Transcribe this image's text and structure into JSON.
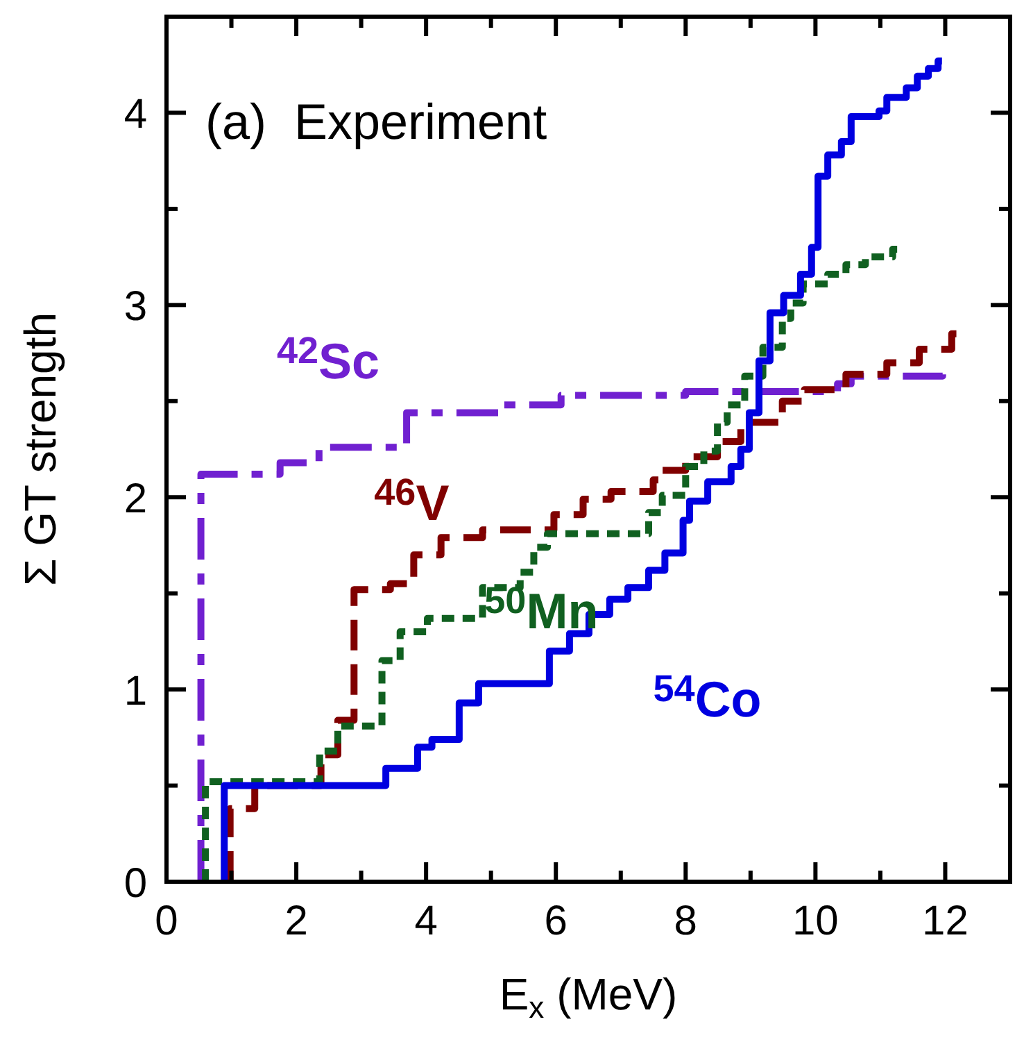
{
  "chart_data": {
    "type": "step",
    "title": "(a)  Experiment",
    "xlabel": "E$_{x}$ (MeV)",
    "ylabel": "Σ GT strength",
    "xlim": [
      0,
      13
    ],
    "ylim": [
      0,
      4.5
    ],
    "xticks": [
      0,
      {
        "value": 1,
        "label": null
      },
      2,
      {
        "value": 3,
        "label": null
      },
      4,
      {
        "value": 5,
        "label": null
      },
      6,
      {
        "value": 7,
        "label": null
      },
      8,
      {
        "value": 9,
        "label": null
      },
      10,
      {
        "value": 11,
        "label": null
      },
      12,
      {
        "value": 13,
        "label": null
      }
    ],
    "yticks": [
      0,
      {
        "value": 0.5,
        "label": null
      },
      1,
      {
        "value": 1.5,
        "label": null
      },
      2,
      {
        "value": 2.5,
        "label": null
      },
      3,
      {
        "value": 3.5,
        "label": null
      },
      4
    ],
    "grid": false,
    "marker": "none",
    "series": [
      {
        "name": "$^{42}$Sc",
        "color": "#7020d0",
        "line_style": "dashdot",
        "x": [
          0.53,
          0.53,
          1.75,
          2.35,
          3.7,
          5.2,
          6.08,
          8.0,
          10.34,
          10.55,
          11.96
        ],
        "values": [
          0,
          2.12,
          2.18,
          2.26,
          2.44,
          2.48,
          2.53,
          2.55,
          2.59,
          2.63,
          2.66
        ]
      },
      {
        "name": "$^{46}$V",
        "color": "#800000",
        "line_style": "dashed",
        "x": [
          0.98,
          0.98,
          1.36,
          2.38,
          2.64,
          2.89,
          3.45,
          3.81,
          4.23,
          4.87,
          5.97,
          6.42,
          6.85,
          7.5,
          7.64,
          8.0,
          8.49,
          8.85,
          9.49,
          9.83,
          10.47,
          11.1,
          11.6,
          12.1,
          12.2
        ],
        "values": [
          0,
          0.38,
          0.5,
          0.66,
          0.84,
          1.52,
          1.55,
          1.7,
          1.79,
          1.83,
          1.91,
          1.99,
          2.03,
          2.09,
          2.14,
          2.21,
          2.29,
          2.39,
          2.5,
          2.56,
          2.64,
          2.7,
          2.77,
          2.85,
          2.87
        ]
      },
      {
        "name": "$^{50}$Mn",
        "color": "#106020",
        "line_style": "dotted",
        "x": [
          0.6,
          0.6,
          2.36,
          2.64,
          3.32,
          3.6,
          4.02,
          4.87,
          5.45,
          5.66,
          5.87,
          7.43,
          7.64,
          8.0,
          8.28,
          8.49,
          8.64,
          8.91,
          9.19,
          9.49,
          9.62,
          9.81,
          10.19,
          10.47,
          10.77,
          11.19,
          11.32
        ],
        "values": [
          0,
          0.52,
          0.68,
          0.81,
          1.15,
          1.3,
          1.37,
          1.53,
          1.61,
          1.74,
          1.81,
          1.92,
          2.01,
          2.16,
          2.24,
          2.39,
          2.48,
          2.63,
          2.78,
          2.93,
          3.01,
          3.11,
          3.16,
          3.21,
          3.25,
          3.29,
          3.31
        ]
      },
      {
        "name": "$^{54}$Co",
        "color": "#0000e0",
        "line_style": "solid",
        "x": [
          0.89,
          0.89,
          3.38,
          3.87,
          4.09,
          4.51,
          4.81,
          5.9,
          6.21,
          6.51,
          6.83,
          7.11,
          7.43,
          7.68,
          7.96,
          8.06,
          8.34,
          8.7,
          8.85,
          8.98,
          9.13,
          9.3,
          9.51,
          9.77,
          9.94,
          10.04,
          10.19,
          10.4,
          10.55,
          10.98,
          11.1,
          11.4,
          11.57,
          11.74,
          11.89,
          11.95
        ],
        "values": [
          0,
          0.5,
          0.59,
          0.7,
          0.74,
          0.93,
          1.03,
          1.2,
          1.29,
          1.39,
          1.47,
          1.53,
          1.62,
          1.71,
          1.88,
          1.98,
          2.08,
          2.16,
          2.25,
          2.44,
          2.71,
          2.96,
          3.05,
          3.16,
          3.3,
          3.67,
          3.78,
          3.85,
          3.98,
          4.01,
          4.08,
          4.13,
          4.19,
          4.23,
          4.27,
          4.27
        ]
      }
    ]
  }
}
